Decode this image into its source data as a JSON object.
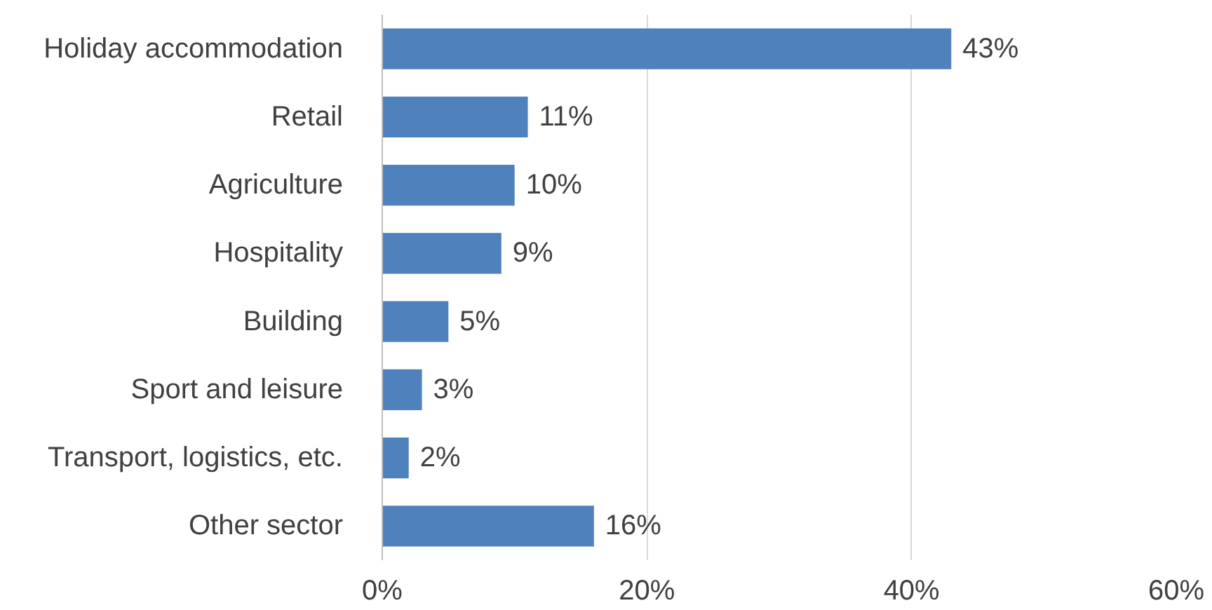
{
  "chart_data": {
    "type": "bar",
    "orientation": "horizontal",
    "categories": [
      "Holiday accommodation",
      "Retail",
      "Agriculture",
      "Hospitality",
      "Building",
      "Sport and leisure",
      "Transport, logistics, etc.",
      "Other sector"
    ],
    "values": [
      43,
      11,
      10,
      9,
      5,
      3,
      2,
      16
    ],
    "value_labels": [
      "43%",
      "11%",
      "10%",
      "9%",
      "5%",
      "3%",
      "2%",
      "16%"
    ],
    "color": "#4f81bd",
    "xlim": [
      0,
      60
    ],
    "xticks": [
      {
        "value": 0,
        "label": "0%"
      },
      {
        "value": 20,
        "label": "20%"
      },
      {
        "value": 40,
        "label": "40%"
      },
      {
        "value": 60,
        "label": "60%"
      }
    ],
    "grid": "x"
  }
}
